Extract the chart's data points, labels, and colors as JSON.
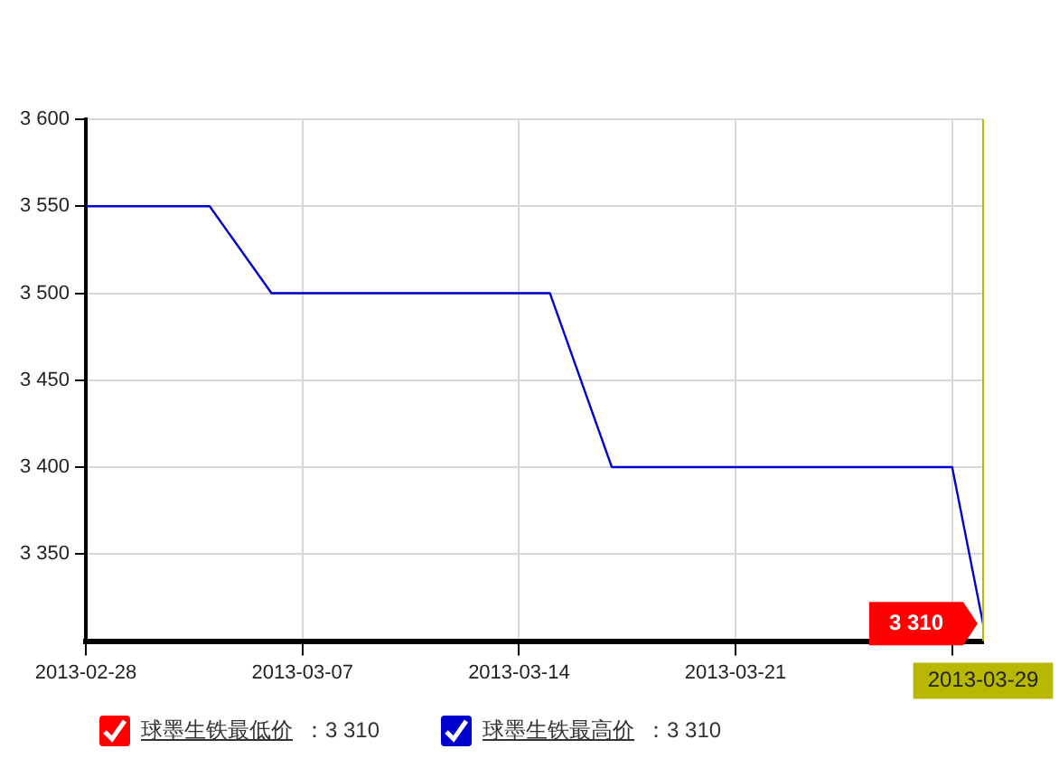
{
  "chart_data": {
    "type": "line",
    "x": [
      "2013-02-28",
      "2013-03-04",
      "2013-03-06",
      "2013-03-15",
      "2013-03-17",
      "2013-03-28",
      "2013-03-29"
    ],
    "series": [
      {
        "name": "球墨生铁最低价",
        "color": "#ff0000",
        "values": [
          null,
          null,
          null,
          null,
          null,
          null,
          null
        ]
      },
      {
        "name": "球墨生铁最高价",
        "color": "#0000cc",
        "values": [
          3550,
          3550,
          3500,
          3500,
          3400,
          3400,
          3310
        ]
      }
    ],
    "xlim": [
      "2013-02-28",
      "2013-03-29"
    ],
    "xticks": [
      {
        "value": "2013-02-28",
        "label": "2013-02-28"
      },
      {
        "value": "2013-03-07",
        "label": "2013-03-07"
      },
      {
        "value": "2013-03-14",
        "label": "2013-03-14"
      },
      {
        "value": "2013-03-21",
        "label": "2013-03-21"
      },
      {
        "value": "2013-03-28",
        "label": null
      }
    ],
    "ylim": [
      3300,
      3600
    ],
    "yticks": [
      {
        "value": 3350,
        "label": "3 350"
      },
      {
        "value": 3400,
        "label": "3 400"
      },
      {
        "value": 3450,
        "label": "3 450"
      },
      {
        "value": 3500,
        "label": "3 500"
      },
      {
        "value": 3550,
        "label": "3 550"
      },
      {
        "value": 3600,
        "label": "3 600"
      }
    ],
    "grid": true,
    "legend": "bottom left",
    "marker": "none",
    "line_style": "solid",
    "ref_lines": [
      {
        "axis": "x",
        "value": "2013-03-29",
        "label": "2013-03-29",
        "color": "#b8b800"
      }
    ],
    "annotations": [
      {
        "text": "3 310",
        "x": "2013-03-29",
        "y": 3310
      },
      "：3 310",
      "：3 310"
    ]
  }
}
